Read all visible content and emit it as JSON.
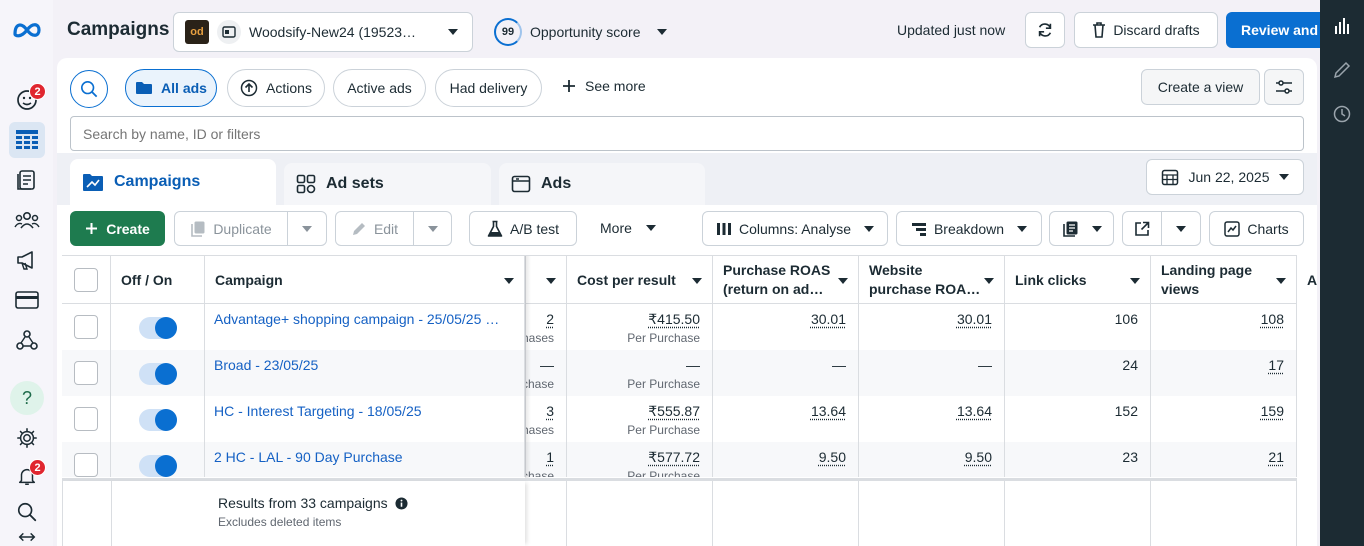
{
  "header": {
    "title": "Campaigns",
    "account_name": "Woodsify-New24 (19523…",
    "opportunity_score": "99",
    "opportunity_label": "Opportunity score",
    "updated_text": "Updated just now",
    "discard_label": "Discard drafts",
    "review_label": "Review and"
  },
  "left_rail": {
    "emoji_badge": "2",
    "notification_badge": "2",
    "help_label": "?"
  },
  "filters": {
    "all_ads": "All ads",
    "actions": "Actions",
    "active_ads": "Active ads",
    "had_delivery": "Had delivery",
    "see_more": "See more",
    "create_view": "Create a view",
    "search_placeholder": "Search by name, ID or filters"
  },
  "tabs": [
    {
      "label": "Campaigns"
    },
    {
      "label": "Ad sets"
    },
    {
      "label": "Ads"
    }
  ],
  "date_range": "Jun 22, 2025",
  "toolbar": {
    "create": "Create",
    "duplicate": "Duplicate",
    "edit": "Edit",
    "ab_test": "A/B test",
    "more": "More",
    "columns": "Columns: Analyse",
    "breakdown": "Breakdown",
    "charts": "Charts"
  },
  "table": {
    "columns": {
      "off_on": "Off / On",
      "campaign": "Campaign",
      "cost_per_result": "Cost per result",
      "purchase_roas": [
        "Purchase ROAS",
        "(return on ad…"
      ],
      "website_roas": [
        "Website",
        "purchase ROA…"
      ],
      "link_clicks": "Link clicks",
      "landing_views": [
        "Landing page",
        "views"
      ],
      "partial_next": "A"
    },
    "rows": [
      {
        "name": "Advantage+ shopping campaign - 25/05/25 …",
        "results": "2",
        "results_sub": "hases",
        "cost": "₹415.50",
        "cost_sub": "Per Purchase",
        "roas": "30.01",
        "web_roas": "30.01",
        "clicks": "106",
        "landing": "108",
        "on": true
      },
      {
        "name": "Broad - 23/05/25",
        "results": "—",
        "results_sub": "chase",
        "cost": "—",
        "cost_sub": "Per Purchase",
        "roas": "—",
        "web_roas": "—",
        "clicks": "24",
        "landing": "17",
        "on": true
      },
      {
        "name": "HC - Interest Targeting - 18/05/25",
        "results": "3",
        "results_sub": "hases",
        "cost": "₹555.87",
        "cost_sub": "Per Purchase",
        "roas": "13.64",
        "web_roas": "13.64",
        "clicks": "152",
        "landing": "159",
        "on": true
      },
      {
        "name": "2 HC - LAL - 90 Day Purchase",
        "results": "1",
        "results_sub": "chase",
        "cost": "₹577.72",
        "cost_sub": "Per Purchase",
        "roas": "9.50",
        "web_roas": "9.50",
        "clicks": "23",
        "landing": "21",
        "on": true
      }
    ],
    "summary": "Results from 33 campaigns",
    "summary_note": "Excludes deleted items"
  },
  "colors": {
    "primary": "#0a6fd1",
    "create_green": "#1e7b4f",
    "dark_rail": "#1c2b33"
  }
}
